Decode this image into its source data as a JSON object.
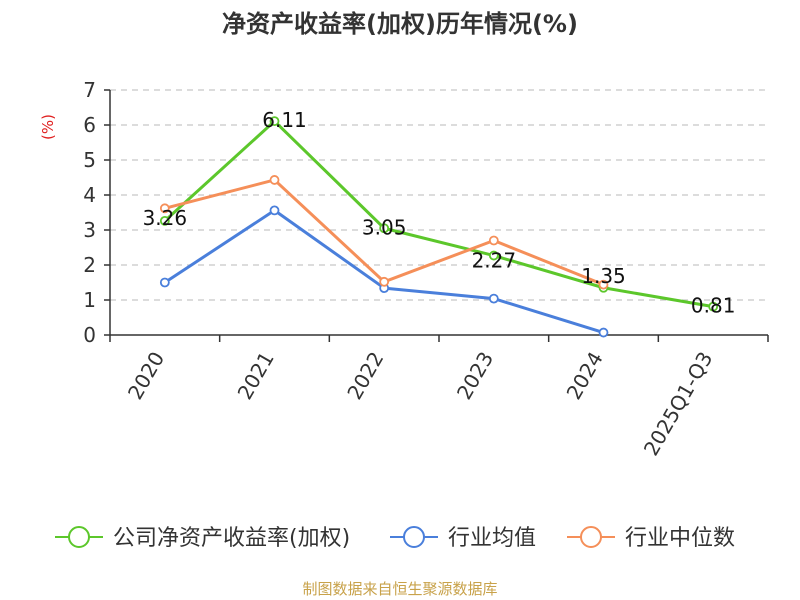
{
  "chart_data": {
    "type": "line",
    "title": "净资产收益率(加权)历年情况(%)",
    "ylabel": "(%)",
    "xlabel": "",
    "categories": [
      "2020",
      "2021",
      "2022",
      "2023",
      "2024",
      "2025Q1-Q3"
    ],
    "ylim": [
      0,
      7
    ],
    "yticks": [
      0,
      1,
      2,
      3,
      4,
      5,
      6,
      7
    ],
    "grid": true,
    "legend_position": "bottom",
    "series": [
      {
        "name": "公司净资产收益率(加权)",
        "color": "#5cc72b",
        "values": [
          3.26,
          6.11,
          3.05,
          2.27,
          1.35,
          0.81
        ],
        "labels": [
          "3.26",
          "6.11",
          "3.05",
          "2.27",
          "1.35",
          "0.81"
        ]
      },
      {
        "name": "行业均值",
        "color": "#4a7fdb",
        "values": [
          1.5,
          3.56,
          1.34,
          1.04,
          0.07,
          null
        ]
      },
      {
        "name": "行业中位数",
        "color": "#f58f59",
        "values": [
          3.62,
          4.43,
          1.52,
          2.7,
          1.44,
          null
        ]
      }
    ],
    "source": "制图数据来自恒生聚源数据库"
  }
}
